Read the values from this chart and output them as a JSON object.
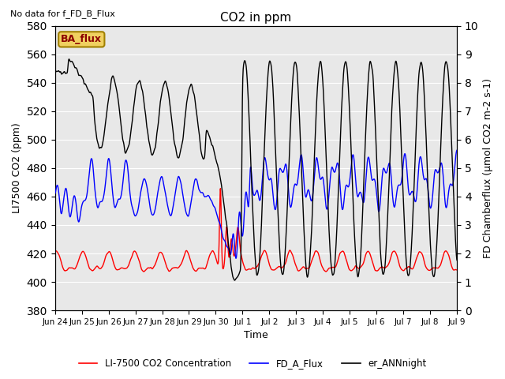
{
  "title": "CO2 in ppm",
  "top_left_text": "No data for f_FD_B_Flux",
  "ylabel_left": "LI7500 CO2 (ppm)",
  "ylabel_right": "FD Chamberflux (μmol CO2 m-2 s-1)",
  "xlabel": "Time",
  "ylim_left": [
    380,
    580
  ],
  "ylim_right": [
    0.0,
    10.0
  ],
  "xtick_labels": [
    "Jun 24",
    "Jun 25",
    "Jun 26",
    "Jun 27",
    "Jun 28",
    "Jun 29",
    "Jun 30",
    "Jul 1",
    "Jul 2",
    "Jul 3",
    "Jul 4",
    "Jul 5",
    "Jul 6",
    "Jul 7",
    "Jul 8",
    "Jul 9"
  ],
  "legend_entries": [
    {
      "label": "LI-7500 CO2 Concentration",
      "color": "red",
      "lw": 1.2
    },
    {
      "label": "FD_A_Flux",
      "color": "blue",
      "lw": 1.2
    },
    {
      "label": "er_ANNnight",
      "color": "black",
      "lw": 1.2
    }
  ],
  "ba_flux_box": {
    "text": "BA_flux",
    "facecolor": "#f0d060",
    "edgecolor": "#a08000"
  },
  "background_color": "#e8e8e8",
  "grid_color": "white",
  "n_points": 2000,
  "n_days": 15.5,
  "seed": 42
}
